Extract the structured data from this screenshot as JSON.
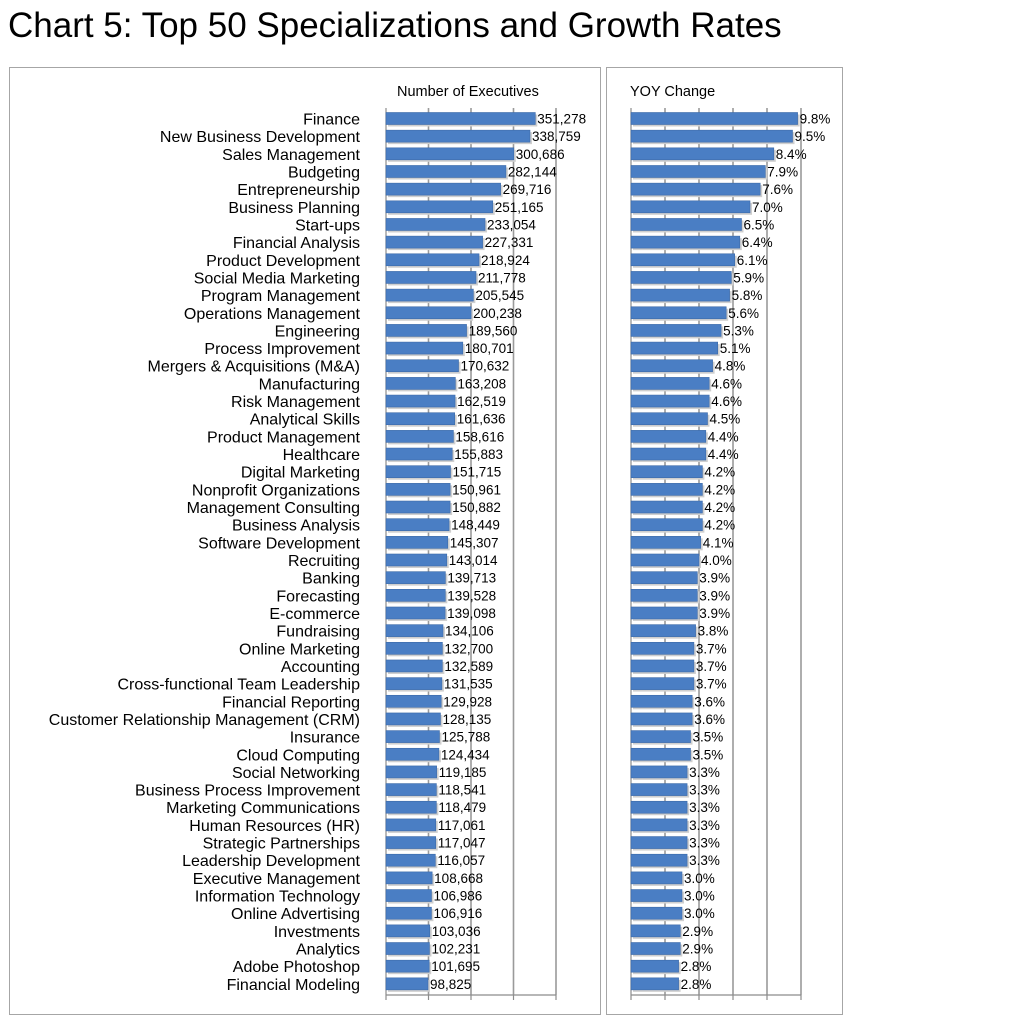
{
  "title": "Chart 5: Top 50 Specializations and Growth Rates",
  "chart_data": [
    {
      "type": "bar",
      "orientation": "horizontal",
      "title": "Number of Executives",
      "categories": [
        "Finance",
        "New Business Development",
        "Sales Management",
        "Budgeting",
        "Entrepreneurship",
        "Business Planning",
        "Start-ups",
        "Financial Analysis",
        "Product Development",
        "Social Media Marketing",
        "Program Management",
        "Operations Management",
        "Engineering",
        "Process Improvement",
        "Mergers & Acquisitions (M&A)",
        "Manufacturing",
        "Risk Management",
        "Analytical Skills",
        "Product Management",
        "Healthcare",
        "Digital Marketing",
        "Nonprofit Organizations",
        "Management Consulting",
        "Business Analysis",
        "Software Development",
        "Recruiting",
        "Banking",
        "Forecasting",
        "E-commerce",
        "Fundraising",
        "Online Marketing",
        "Accounting",
        "Cross-functional Team Leadership",
        "Financial Reporting",
        "Customer Relationship Management (CRM)",
        "Insurance",
        "Cloud Computing",
        "Social Networking",
        "Business Process Improvement",
        "Marketing Communications",
        "Human Resources (HR)",
        "Strategic Partnerships",
        "Leadership Development",
        "Executive Management",
        "Information Technology",
        "Online Advertising",
        "Investments",
        "Analytics",
        "Adobe Photoshop",
        "Financial Modeling"
      ],
      "values": [
        351278,
        338759,
        300686,
        282144,
        269716,
        251165,
        233054,
        227331,
        218924,
        211778,
        205545,
        200238,
        189560,
        180701,
        170632,
        163208,
        162519,
        161636,
        158616,
        155883,
        151715,
        150961,
        150882,
        148449,
        145307,
        143014,
        139713,
        139528,
        139098,
        134106,
        132700,
        132589,
        131535,
        129928,
        128135,
        125788,
        124434,
        119185,
        118541,
        118479,
        117061,
        117047,
        116057,
        108668,
        106986,
        106916,
        103036,
        102231,
        101695,
        98825
      ],
      "labels": [
        "351,278",
        "338,759",
        "300,686",
        "282,144",
        "269,716",
        "251,165",
        "233,054",
        "227,331",
        "218,924",
        "211,778",
        "205,545",
        "200,238",
        "189,560",
        "180,701",
        "170,632",
        "163,208",
        "162,519",
        "161,636",
        "158,616",
        "155,883",
        "151,715",
        "150,961",
        "150,882",
        "148,449",
        "145,307",
        "143,014",
        "139,713",
        "139,528",
        "139,098",
        "134,106",
        "132,700",
        "132,589",
        "131,535",
        "129,928",
        "128,135",
        "125,788",
        "124,434",
        "119,185",
        "118,541",
        "118,479",
        "117,061",
        "117,047",
        "116,057",
        "108,668",
        "106,986",
        "106,916",
        "103,036",
        "102,231",
        "101,695",
        "98,825"
      ],
      "xlim": [
        0,
        400000
      ],
      "grid": true,
      "bar_color": "#4a7ec4"
    },
    {
      "type": "bar",
      "orientation": "horizontal",
      "title": "YOY Change",
      "values": [
        9.8,
        9.5,
        8.4,
        7.9,
        7.6,
        7.0,
        6.5,
        6.4,
        6.1,
        5.9,
        5.8,
        5.6,
        5.3,
        5.1,
        4.8,
        4.6,
        4.6,
        4.5,
        4.4,
        4.4,
        4.2,
        4.2,
        4.2,
        4.2,
        4.1,
        4.0,
        3.9,
        3.9,
        3.9,
        3.8,
        3.7,
        3.7,
        3.7,
        3.6,
        3.6,
        3.5,
        3.5,
        3.3,
        3.3,
        3.3,
        3.3,
        3.3,
        3.3,
        3.0,
        3.0,
        3.0,
        2.9,
        2.9,
        2.8,
        2.8
      ],
      "labels": [
        "9.8%",
        "9.5%",
        "8.4%",
        "7.9%",
        "7.6%",
        "7.0%",
        "6.5%",
        "6.4%",
        "6.1%",
        "5.9%",
        "5.8%",
        "5.6%",
        "5.3%",
        "5.1%",
        "4.8%",
        "4.6%",
        "4.6%",
        "4.5%",
        "4.4%",
        "4.4%",
        "4.2%",
        "4.2%",
        "4.2%",
        "4.2%",
        "4.1%",
        "4.0%",
        "3.9%",
        "3.9%",
        "3.9%",
        "3.8%",
        "3.7%",
        "3.7%",
        "3.7%",
        "3.6%",
        "3.6%",
        "3.5%",
        "3.5%",
        "3.3%",
        "3.3%",
        "3.3%",
        "3.3%",
        "3.3%",
        "3.3%",
        "3.0%",
        "3.0%",
        "3.0%",
        "2.9%",
        "2.9%",
        "2.8%",
        "2.8%"
      ],
      "xlim": [
        0,
        10
      ],
      "grid": true,
      "bar_color": "#4a7ec4"
    }
  ]
}
